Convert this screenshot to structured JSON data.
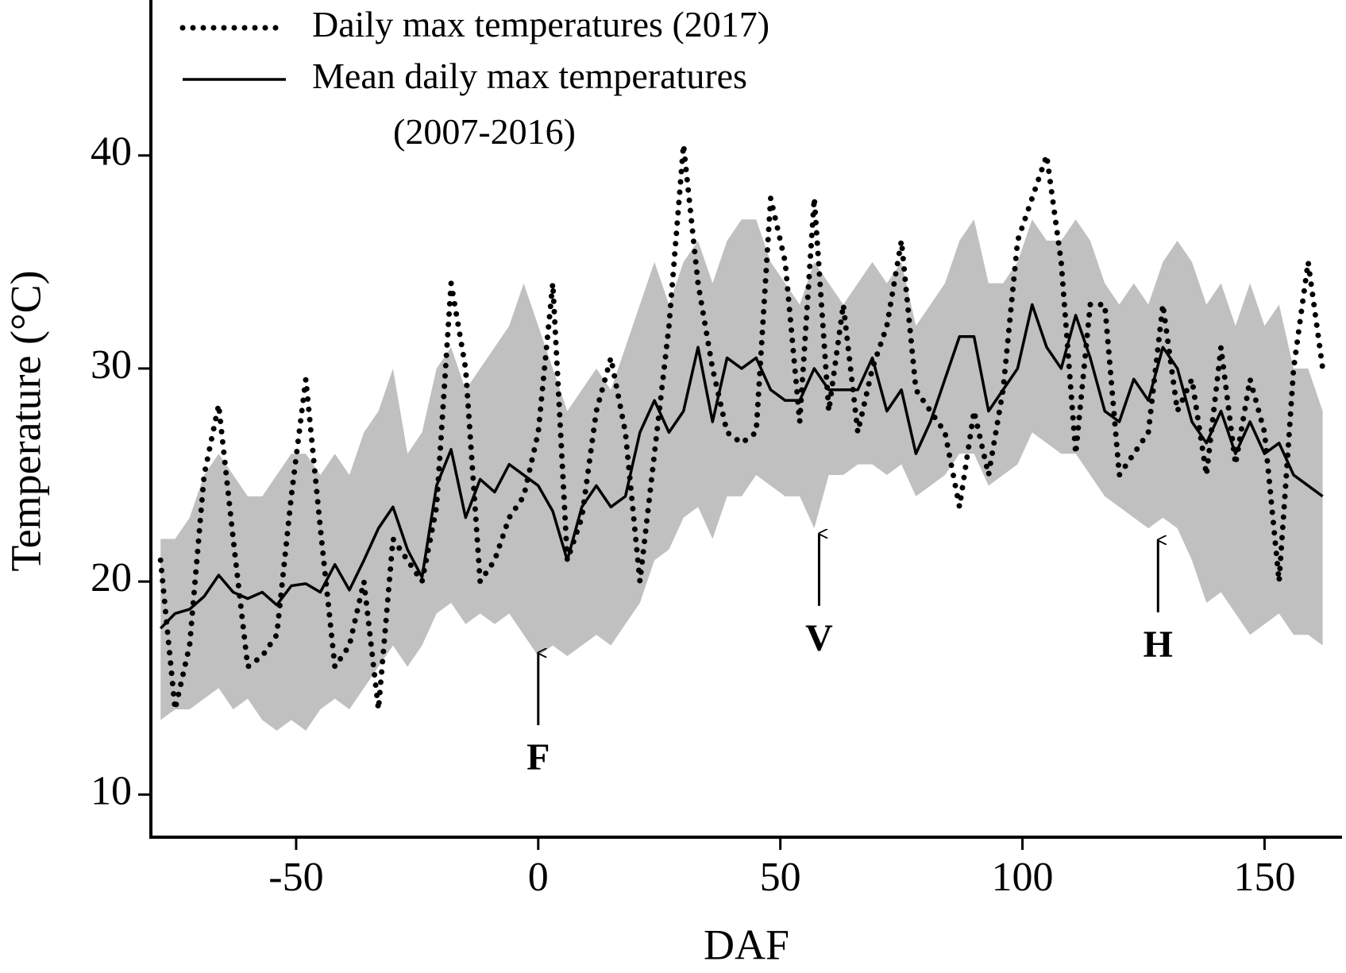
{
  "chart_data": {
    "type": "line",
    "xlabel": "DAF",
    "ylabel": "Temperature (°C)",
    "xlim": [
      -80,
      166
    ],
    "ylim": [
      8,
      47
    ],
    "xticks": [
      -50,
      0,
      50,
      100,
      150
    ],
    "yticks": [
      10,
      20,
      30,
      40
    ],
    "legend": "top-left",
    "x": [
      -78,
      -75,
      -72,
      -69,
      -66,
      -63,
      -60,
      -57,
      -54,
      -51,
      -48,
      -45,
      -42,
      -39,
      -36,
      -33,
      -30,
      -27,
      -24,
      -21,
      -18,
      -15,
      -12,
      -9,
      -6,
      -3,
      0,
      3,
      6,
      9,
      12,
      15,
      18,
      21,
      24,
      27,
      30,
      33,
      36,
      39,
      42,
      45,
      48,
      51,
      54,
      57,
      60,
      63,
      66,
      69,
      72,
      75,
      78,
      81,
      84,
      87,
      90,
      93,
      96,
      99,
      102,
      105,
      108,
      111,
      114,
      117,
      120,
      123,
      126,
      129,
      132,
      135,
      138,
      141,
      144,
      147,
      150,
      153,
      156,
      159,
      162
    ],
    "band": {
      "color": "#c0c0c0",
      "high": [
        22,
        22,
        23,
        25,
        26,
        25,
        24,
        24,
        25,
        26,
        26,
        25,
        26,
        25,
        27,
        28,
        30,
        26,
        27,
        30,
        31,
        29,
        30,
        31,
        32,
        34,
        32,
        30,
        28,
        29,
        30,
        29,
        31,
        33,
        35,
        33,
        35,
        36,
        34,
        36,
        37,
        37,
        35,
        34,
        33,
        35,
        34,
        33,
        34,
        35,
        34,
        35,
        32,
        33,
        34,
        36,
        37,
        34,
        34,
        35,
        37,
        36,
        36,
        37,
        36,
        34,
        33,
        34,
        33,
        35,
        36,
        35,
        33,
        34,
        32,
        34,
        32,
        33,
        30,
        30,
        28
      ],
      "low": [
        13.5,
        14,
        14,
        14.5,
        15,
        14,
        14.5,
        13.5,
        13,
        13.5,
        13,
        14,
        14.5,
        14,
        15,
        16,
        17,
        16,
        17,
        18.5,
        19,
        18,
        18.5,
        18,
        18.5,
        17.5,
        16.5,
        17,
        16.5,
        17,
        17.5,
        17,
        18,
        19,
        21,
        21.5,
        23,
        23.5,
        22,
        24,
        24,
        25,
        24.5,
        24,
        24,
        22.5,
        25,
        25,
        25.5,
        25.5,
        25,
        25.5,
        24,
        24.5,
        25,
        26,
        26,
        24.5,
        25,
        25.5,
        27,
        26.5,
        26,
        26,
        25,
        24,
        23.5,
        23,
        22.5,
        23,
        22.5,
        21,
        19,
        19.5,
        18.5,
        17.5,
        18,
        18.5,
        17.5,
        17.5,
        17
      ]
    },
    "series": [
      {
        "name": "Daily max temperatures (2017)",
        "color": "#000000",
        "style": "dotted",
        "values": [
          21,
          14,
          17,
          25,
          28.3,
          22,
          16,
          16.5,
          17.5,
          24,
          29.5,
          22.5,
          16,
          17,
          20,
          14,
          22,
          21,
          20,
          23.5,
          34,
          30,
          20,
          21,
          23,
          24,
          27,
          34,
          21,
          23,
          28,
          30.5,
          27,
          20,
          26,
          32,
          40.5,
          34,
          30,
          27,
          26.5,
          27,
          38,
          35,
          27.5,
          38,
          28,
          33,
          27,
          30,
          32,
          36,
          29,
          28,
          27,
          23.5,
          28,
          25,
          29,
          36,
          38,
          40,
          35,
          26,
          33,
          33,
          25,
          26,
          27,
          33,
          28,
          29.5,
          25,
          31,
          25.5,
          29.5,
          27,
          20,
          30,
          35,
          30
        ]
      },
      {
        "name": "Mean daily max temperatures\n(2007-2016)",
        "color": "#000000",
        "style": "solid",
        "values": [
          17.8,
          18.5,
          18.7,
          19.3,
          20.3,
          19.5,
          19.2,
          19.5,
          18.9,
          19.8,
          19.9,
          19.5,
          20.8,
          19.6,
          21,
          22.5,
          23.5,
          21.5,
          20.2,
          24.5,
          26.2,
          23,
          24.8,
          24.2,
          25.5,
          25,
          24.5,
          23.3,
          21,
          23.5,
          24.5,
          23.5,
          24,
          27,
          28.5,
          27,
          28,
          31,
          27.5,
          30.5,
          30,
          30.5,
          29,
          28.5,
          28.5,
          30,
          29,
          29,
          29,
          30.5,
          28,
          29,
          26,
          27.5,
          29.5,
          31.5,
          31.5,
          28,
          29,
          30,
          33,
          31,
          30,
          32.5,
          30.5,
          28,
          27.5,
          29.5,
          28.5,
          31,
          30,
          27.5,
          26.5,
          28,
          26,
          27.5,
          26,
          26.5,
          25,
          24.5,
          24
        ]
      }
    ],
    "annotations": [
      {
        "text": "F",
        "x": 0,
        "y": 16.8
      },
      {
        "text": "V",
        "x": 58,
        "y": 22.4
      },
      {
        "text": "H",
        "x": 128,
        "y": 22.1
      }
    ]
  }
}
